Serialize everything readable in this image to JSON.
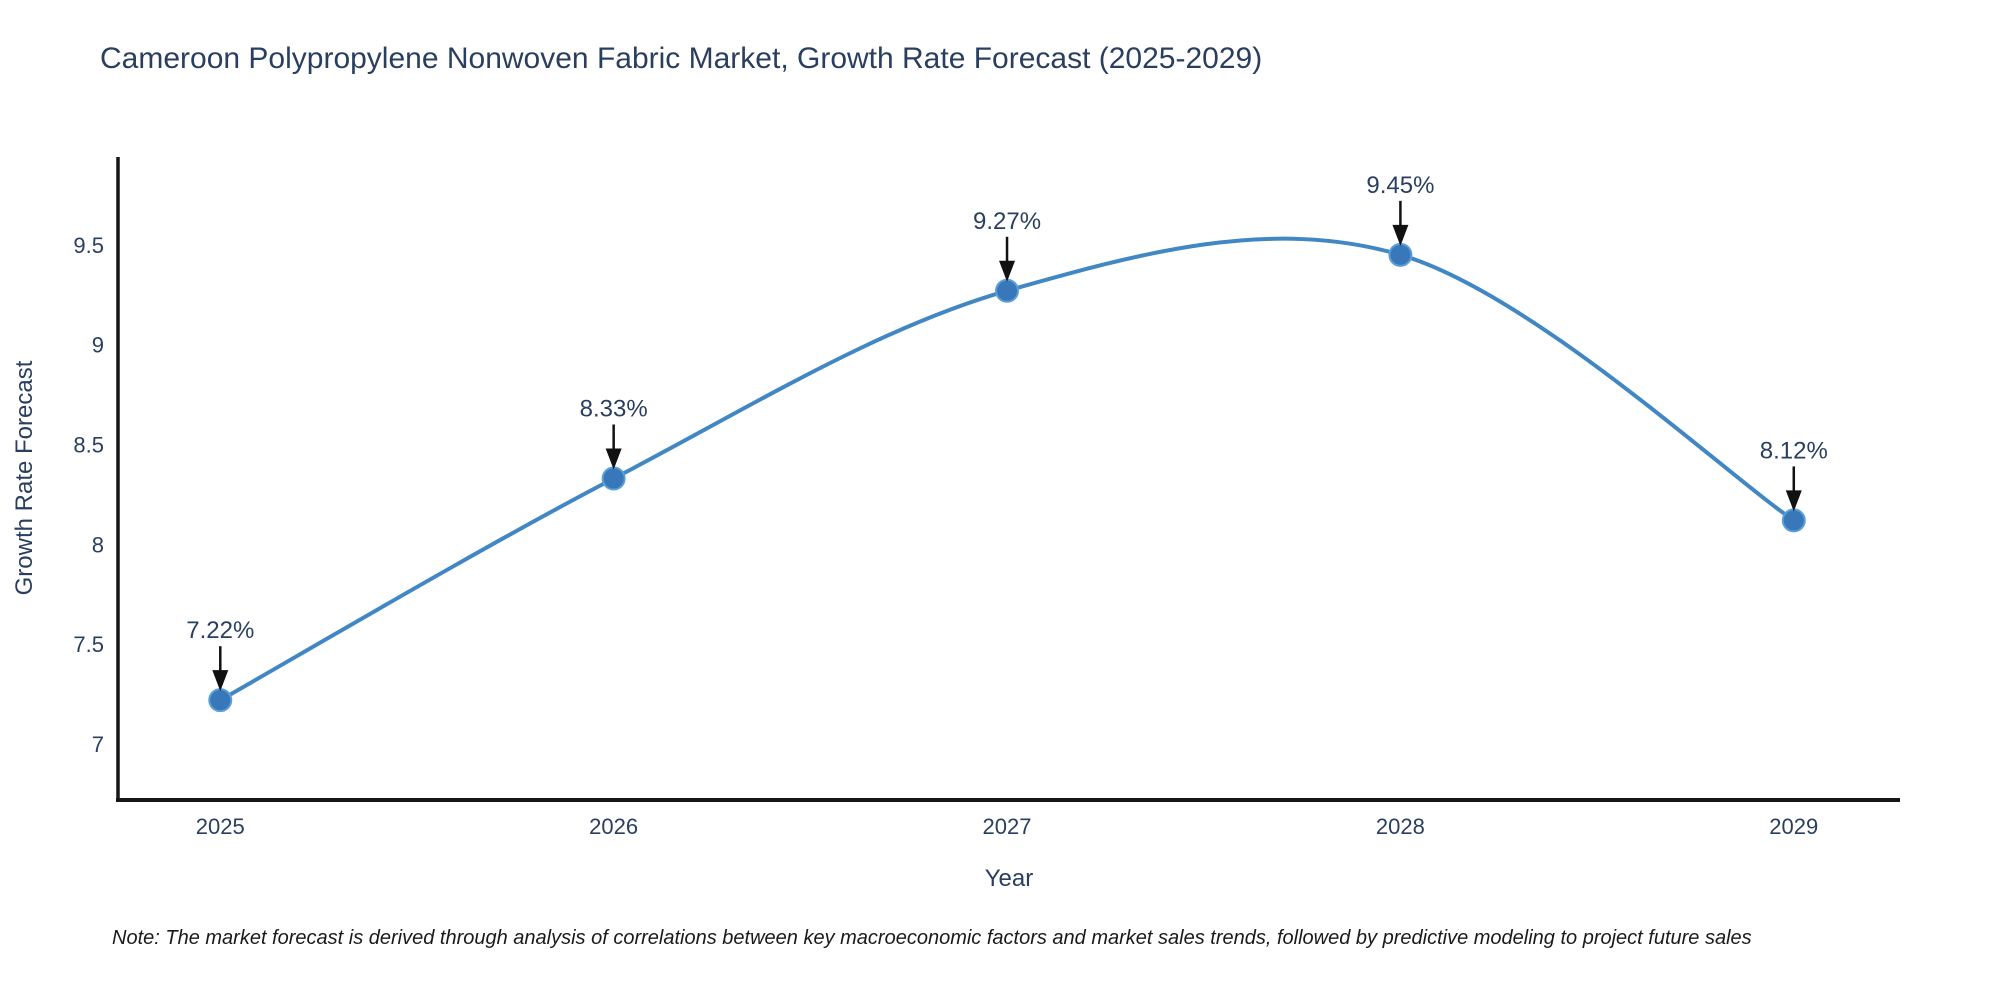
{
  "page": {
    "title": "Cameroon Polypropylene Nonwoven Fabric Market, Growth Rate Forecast (2025-2029)",
    "note": "Note: The market forecast is derived through analysis of correlations between key macroeconomic factors and market sales trends, followed by predictive modeling to project future sales"
  },
  "chart_data": {
    "type": "line",
    "title": "Cameroon Polypropylene Nonwoven Fabric Market, Growth Rate Forecast (2025-2029)",
    "xlabel": "Year",
    "ylabel": "Growth Rate Forecast",
    "x": [
      2025,
      2026,
      2027,
      2028,
      2029
    ],
    "y": [
      7.22,
      8.33,
      9.27,
      9.45,
      8.12
    ],
    "point_labels": [
      "7.22%",
      "8.33%",
      "9.27%",
      "9.45%",
      "8.12%"
    ],
    "xtick_labels": [
      "2025",
      "2026",
      "2027",
      "2028",
      "2029"
    ],
    "ytick_values": [
      7,
      7.5,
      8,
      8.5,
      9,
      9.5
    ],
    "ytick_labels": [
      "7",
      "7.5",
      "8",
      "8.5",
      "9",
      "9.5"
    ],
    "xlim": [
      2024.74,
      2029.27
    ],
    "ylim": [
      6.72,
      9.94
    ],
    "line_shape": "spline",
    "grid": false,
    "legend": "none",
    "point_annotations_have_arrows": true
  },
  "colors": {
    "line": "#4187c4",
    "marker_fill": "#3878ba",
    "marker_edge": "#5b9fd6",
    "axis_line": "#161616",
    "chart_text": "#2a3f5f",
    "annotation_text": "#2a3f5f",
    "arrow": "#111111",
    "note_text": "#1a1a1a",
    "background": "#ffffff"
  }
}
